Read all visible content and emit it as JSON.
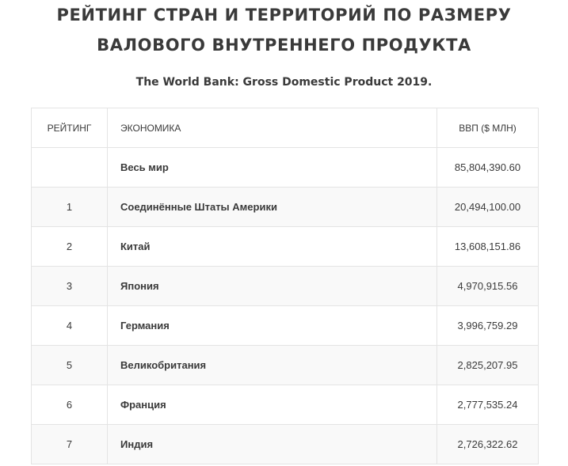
{
  "title_line1": "РЕЙТИНГ СТРАН И ТЕРРИТОРИЙ ПО РАЗМЕРУ",
  "title_line2": "ВАЛОВОГО ВНУТРЕННЕГО ПРОДУКТА",
  "subtitle": "The World Bank: Gross Domestic Product 2019.",
  "table": {
    "headers": {
      "rank": "РЕЙТИНГ",
      "economy": "ЭКОНОМИКА",
      "gdp": "ВВП ($ МЛН)"
    },
    "rows": [
      {
        "rank": "",
        "economy": "Весь мир",
        "gdp": "85,804,390.60"
      },
      {
        "rank": "1",
        "economy": "Соединённые Штаты Америки",
        "gdp": "20,494,100.00"
      },
      {
        "rank": "2",
        "economy": "Китай",
        "gdp": "13,608,151.86"
      },
      {
        "rank": "3",
        "economy": "Япония",
        "gdp": "4,970,915.56"
      },
      {
        "rank": "4",
        "economy": "Германия",
        "gdp": "3,996,759.29"
      },
      {
        "rank": "5",
        "economy": "Великобритания",
        "gdp": "2,825,207.95"
      },
      {
        "rank": "6",
        "economy": "Франция",
        "gdp": "2,777,535.24"
      },
      {
        "rank": "7",
        "economy": "Индия",
        "gdp": "2,726,322.62"
      }
    ]
  }
}
